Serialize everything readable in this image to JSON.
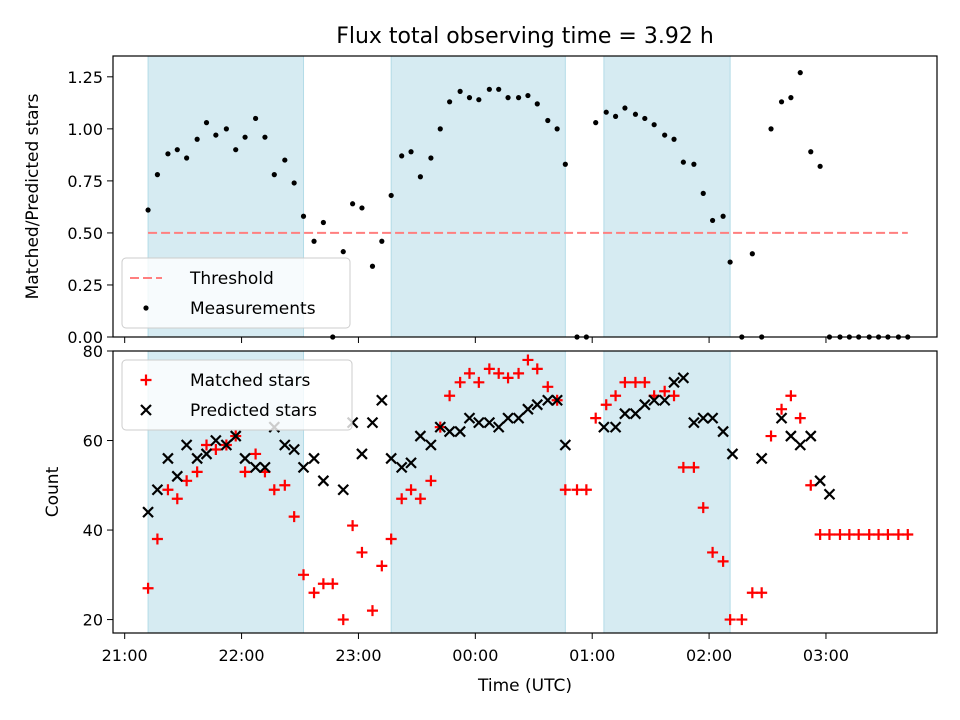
{
  "figure": {
    "title": "Flux total observing time = 3.92 h",
    "xlabel": "Time (UTC)"
  },
  "chart_data": [
    {
      "type": "scatter",
      "panel": "top",
      "ylabel": "Matched/Predicted stars",
      "x_unit": "hours since 21:00 UTC",
      "xlim": [
        -0.1,
        6.95
      ],
      "ylim": [
        0,
        1.35
      ],
      "yticks": [
        0.0,
        0.25,
        0.5,
        0.75,
        1.0,
        1.25
      ],
      "ytick_labels": [
        "0.00",
        "0.25",
        "0.50",
        "0.75",
        "1.00",
        "1.25"
      ],
      "legend_position": "lower-left",
      "shaded_intervals": [
        [
          0.2,
          1.53
        ],
        [
          2.28,
          3.77
        ],
        [
          4.1,
          5.18
        ]
      ],
      "series": [
        {
          "name": "Threshold",
          "style": "dashed-line",
          "color": "#ff7f7f",
          "x": [
            0.2,
            6.7
          ],
          "y": [
            0.5,
            0.5
          ]
        },
        {
          "name": "Measurements",
          "style": "dot",
          "color": "#000000",
          "x": [
            0.2,
            0.28,
            0.37,
            0.45,
            0.53,
            0.62,
            0.7,
            0.78,
            0.87,
            0.95,
            1.03,
            1.12,
            1.2,
            1.28,
            1.37,
            1.45,
            1.53,
            1.62,
            1.7,
            1.78,
            1.87,
            1.95,
            2.03,
            2.12,
            2.2,
            2.28,
            2.37,
            2.45,
            2.53,
            2.62,
            2.7,
            2.78,
            2.87,
            2.95,
            3.03,
            3.12,
            3.2,
            3.28,
            3.37,
            3.45,
            3.53,
            3.62,
            3.7,
            3.77,
            3.87,
            3.95,
            4.03,
            4.12,
            4.2,
            4.28,
            4.37,
            4.45,
            4.53,
            4.62,
            4.7,
            4.78,
            4.87,
            4.95,
            5.03,
            5.12,
            5.18,
            5.28,
            5.37,
            5.45,
            5.53,
            5.62,
            5.7,
            5.78,
            5.87,
            5.95,
            6.03,
            6.12,
            6.2,
            6.28,
            6.37,
            6.45,
            6.53,
            6.62,
            6.7
          ],
          "y": [
            0.61,
            0.78,
            0.88,
            0.9,
            0.86,
            0.95,
            1.03,
            0.97,
            1.0,
            0.9,
            0.96,
            1.05,
            0.96,
            0.78,
            0.85,
            0.74,
            0.58,
            0.46,
            0.55,
            0.0,
            0.41,
            0.64,
            0.62,
            0.34,
            0.46,
            0.68,
            0.87,
            0.89,
            0.77,
            0.86,
            1.0,
            1.13,
            1.18,
            1.15,
            1.14,
            1.19,
            1.19,
            1.15,
            1.15,
            1.16,
            1.12,
            1.04,
            1.0,
            0.83,
            0.0,
            0.0,
            1.03,
            1.08,
            1.06,
            1.1,
            1.07,
            1.05,
            1.02,
            0.97,
            0.95,
            0.84,
            0.83,
            0.69,
            0.56,
            0.58,
            0.36,
            0.0,
            0.4,
            0.0,
            1.0,
            1.13,
            1.15,
            1.27,
            0.89,
            0.82,
            0.0,
            0.0,
            0.0,
            0.0,
            0.0,
            0.0,
            0.0,
            0.0,
            0.0
          ]
        }
      ]
    },
    {
      "type": "scatter",
      "panel": "bottom",
      "ylabel": "Count",
      "x_unit": "hours since 21:00 UTC",
      "xlim": [
        -0.1,
        6.95
      ],
      "ylim": [
        17,
        80
      ],
      "yticks": [
        20,
        40,
        60,
        80
      ],
      "ytick_labels": [
        "20",
        "40",
        "60",
        "80"
      ],
      "xtick_values": [
        0,
        1,
        2,
        3,
        4,
        5,
        6
      ],
      "xtick_labels": [
        "21:00",
        "22:00",
        "23:00",
        "00:00",
        "01:00",
        "02:00",
        "03:00"
      ],
      "legend_position": "upper-left",
      "shaded_intervals": [
        [
          0.2,
          1.53
        ],
        [
          2.28,
          3.77
        ],
        [
          4.1,
          5.18
        ]
      ],
      "series": [
        {
          "name": "Matched stars",
          "style": "plus",
          "color": "#ff0000",
          "x": [
            0.2,
            0.28,
            0.37,
            0.45,
            0.53,
            0.62,
            0.7,
            0.78,
            0.87,
            0.95,
            1.03,
            1.12,
            1.2,
            1.28,
            1.37,
            1.45,
            1.53,
            1.62,
            1.7,
            1.78,
            1.87,
            1.95,
            2.03,
            2.12,
            2.2,
            2.28,
            2.37,
            2.45,
            2.53,
            2.62,
            2.7,
            2.78,
            2.87,
            2.95,
            3.03,
            3.12,
            3.2,
            3.28,
            3.37,
            3.45,
            3.53,
            3.62,
            3.7,
            3.77,
            3.87,
            3.95,
            4.03,
            4.12,
            4.2,
            4.28,
            4.37,
            4.45,
            4.53,
            4.62,
            4.7,
            4.78,
            4.87,
            4.95,
            5.03,
            5.12,
            5.18,
            5.28,
            5.37,
            5.45,
            5.53,
            5.62,
            5.7,
            5.78,
            5.87,
            5.95,
            6.03,
            6.12,
            6.2,
            6.28,
            6.37,
            6.45,
            6.53,
            6.62,
            6.7
          ],
          "y": [
            27,
            38,
            49,
            47,
            51,
            53,
            59,
            58,
            59,
            61,
            53,
            57,
            53,
            49,
            50,
            43,
            30,
            26,
            28,
            28,
            20,
            41,
            35,
            22,
            32,
            38,
            47,
            49,
            47,
            51,
            63,
            70,
            73,
            75,
            73,
            76,
            75,
            74,
            75,
            78,
            76,
            72,
            69,
            49,
            49,
            49,
            65,
            68,
            70,
            73,
            73,
            73,
            70,
            71,
            70,
            54,
            54,
            45,
            35,
            33,
            20,
            20,
            26,
            26,
            61,
            67,
            70,
            65,
            50,
            39,
            39,
            39,
            39,
            39,
            39,
            39,
            39,
            39,
            39
          ]
        },
        {
          "name": "Predicted stars",
          "style": "x",
          "color": "#000000",
          "x": [
            0.2,
            0.28,
            0.37,
            0.45,
            0.53,
            0.62,
            0.7,
            0.78,
            0.87,
            0.95,
            1.03,
            1.12,
            1.2,
            1.28,
            1.37,
            1.45,
            1.53,
            1.62,
            1.7,
            1.87,
            1.95,
            2.03,
            2.12,
            2.2,
            2.28,
            2.37,
            2.45,
            2.53,
            2.62,
            2.7,
            2.78,
            2.87,
            2.95,
            3.03,
            3.12,
            3.2,
            3.28,
            3.37,
            3.45,
            3.53,
            3.62,
            3.7,
            3.77,
            4.1,
            4.2,
            4.28,
            4.37,
            4.45,
            4.53,
            4.62,
            4.7,
            4.78,
            4.87,
            4.95,
            5.03,
            5.12,
            5.2,
            5.45,
            5.62,
            5.7,
            5.78,
            5.87,
            5.95,
            6.03
          ],
          "y": [
            44,
            49,
            56,
            52,
            59,
            56,
            57,
            60,
            59,
            61,
            56,
            54,
            54,
            63,
            59,
            58,
            54,
            56,
            51,
            49,
            64,
            57,
            64,
            69,
            56,
            54,
            55,
            61,
            59,
            63,
            62,
            62,
            65,
            64,
            64,
            63,
            65,
            65,
            67,
            68,
            69,
            69,
            59,
            63,
            63,
            66,
            66,
            68,
            69,
            69,
            73,
            74,
            64,
            65,
            65,
            62,
            57,
            56,
            65,
            61,
            59,
            61,
            51,
            48
          ]
        }
      ]
    }
  ]
}
